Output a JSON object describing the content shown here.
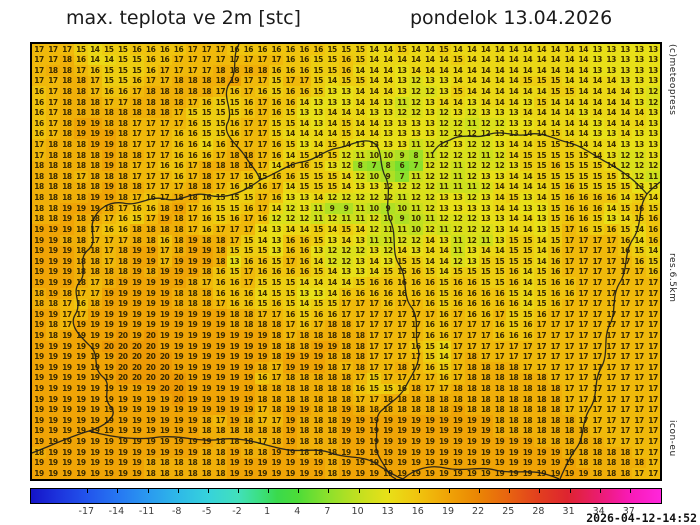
{
  "header": {
    "title_left": "max. teplota ve 2m [stc]",
    "title_right": "pondelok 13.04.2026"
  },
  "side_labels": {
    "top": "(c)meteopress",
    "middle": "res.6.5km",
    "bottom": "icon-eu"
  },
  "timestamp": "2026-04-12-14:52",
  "chart_data": {
    "type": "heatmap",
    "title": "max. teplota ve 2m [stc]",
    "valid_date": "pondelok 13.04.2026",
    "units": "degC",
    "grid_cols": 45,
    "grid_rows": 41,
    "rows": [
      "17 17 17 15 14 15 15 16 16 16 16 17 17 17 16 16 16 16 16 16 16 15 15 15 14 14 15 14 14 15 14 14 14 14 14 14 14 14 14 14 13 13 13 13 13",
      "17 17 18 16 14 14 15 15 16 16 17 17 17 17 17 17 17 17 16 16 15 15 16 15 14 14 14 14 14 14 15 14 14 14 14 14 14 14 14 14 13 13 13 13 13",
      "17 18 18 17 16 15 15 15 16 17 17 17 17 18 18 18 18 16 16 16 15 15 16 14 14 14 13 14 14 14 14 14 14 14 14 14 14 14 14 14 13 13 13 13 13",
      "17 17 18 18 17 15 15 16 17 17 18 18 18 18 19 17 17 15 17 17 15 14 15 15 14 14 13 12 13 13 14 14 14 14 14 15 15 15 14 14 14 14 13 13 13",
      "16 17 18 18 17 16 16 17 18 18 18 18 18 17 16 17 16 15 16 16 15 13 13 14 14 14 13 12 12 13 15 14 14 14 14 14 14 15 15 14 14 14 14 13 12",
      "16 17 18 18 18 17 17 18 18 18 18 17 16 15 15 16 17 16 16 14 13 13 13 14 14 13 11 12 13 14 14 13 14 14 14 13 15 14 14 14 14 14 14 13 12",
      "16 17 18 18 18 18 18 18 18 18 17 15 15 15 15 16 17 16 15 13 13 14 14 14 13 13 12 12 13 12 13 12 13 13 13 14 14 14 14 13 14 14 14 14 13",
      "16 17 18 19 19 18 18 17 17 17 17 16 15 15 16 17 17 15 15 14 13 14 15 14 14 13 13 13 13 12 12 11 12 12 13 13 14 14 14 14 13 14 14 14 13",
      "16 17 18 19 19 19 18 17 17 17 16 16 15 15 16 17 17 15 14 14 14 14 15 14 14 13 13 13 13 12 12 12 12 13 13 14 14 15 14 14 13 13 14 13 13",
      "17 18 18 18 19 19 18 17 17 17 16 16 14 16 17 17 17 16 15 13 14 15 14 13 13 13 13 11 12 12 13 12 12 13 14 14 15 15 15 14 14 14 13 13 13",
      "17 18 18 18 18 19 18 18 17 17 16 16 16 17 18 18 17 16 14 15 15 15 12 11 10 10 9 8 11 12 12 12 11 12 14 15 15 15 15 15 14 13 12 12 13",
      "18 18 18 18 18 19 18 17 17 16 16 17 18 18 18 18 17 14 16 16 15 13 12 8 7 8 6 7 12 12 11 12 12 12 13 15 15 16 15 15 15 14 12 12 12",
      "18 18 18 17 18 18 18 17 17 17 16 17 18 17 17 16 15 16 16 15 15 15 14 12 10 9 7 11 12 12 11 12 13 13 14 14 15 15 15 15 15 15 13 12 11",
      "18 18 18 18 18 19 18 18 17 17 17 18 18 17 16 15 16 17 14 15 15 15 14 13 13 12 12 12 12 11 11 11 12 14 14 14 14 15 16 15 15 15 15 13 13",
      "18 18 18 18 19 19 18 17 16 17 18 18 16 15 15 15 17 16 13 13 14 12 12 12 12 12 11 12 12 13 13 12 13 14 15 13 14 15 16 16 16 16 14 15 14",
      "18 18 19 19 19 18 17 16 16 18 19 17 16 15 15 16 17 14 12 13 11 9 9 11 10 9 10 11 12 13 13 13 13 14 14 13 13 15 16 16 16 14 15 16 15",
      "18 18 19 18 18 17 16 15 17 19 18 17 16 15 16 17 16 12 12 12 11 12 11 11 12 10 9 10 11 12 12 12 13 13 14 14 13 15 16 16 15 13 14 15 16",
      "19 19 19 18 17 16 16 18 18 18 18 17 16 17 17 17 14 13 14 14 15 14 15 14 12 11 11 10 12 11 12 12 12 13 14 14 13 15 17 16 15 16 15 14 16",
      "19 19 18 18 17 17 17 18 18 16 18 19 18 18 17 15 14 13 16 16 15 13 14 13 11 11 12 12 14 13 11 12 11 13 15 15 14 15 17 17 17 17 16 14 16",
      "19 19 19 18 18 17 18 19 19 17 18 19 19 18 15 15 15 13 16 16 13 12 12 12 13 12 14 13 14 14 11 13 14 14 15 15 14 16 17 17 17 17 16 15 14",
      "19 19 19 18 18 17 18 19 19 17 19 19 19 18 13 16 16 15 17 16 14 12 12 13 14 13 15 15 14 14 12 13 15 15 15 15 14 16 17 17 17 17 17 16 15",
      "19 19 19 18 18 18 18 19 18 19 19 19 18 16 15 17 16 16 16 16 15 14 13 13 14 15 15 16 15 14 15 15 15 15 16 14 15 16 17 17 17 17 17 17 16",
      "19 19 19 18 17 18 19 19 19 19 19 18 17 16 16 17 15 15 15 14 14 14 14 15 16 16 16 16 16 15 16 16 15 15 16 14 15 16 16 17 17 17 17 17 17",
      "18 19 18 17 17 19 19 19 19 19 18 18 18 16 16 16 14 15 15 13 13 14 16 16 16 16 16 16 16 15 16 16 16 16 15 14 15 16 16 17 17 17 17 17 17",
      "18 18 17 16 18 19 19 19 19 19 18 18 18 17 16 16 15 16 15 14 15 15 17 17 17 16 17 17 16 15 16 16 16 16 16 14 15 16 17 17 17 17 17 17 17",
      "19 19 17 17 19 19 19 19 19 19 19 19 19 19 18 18 17 17 16 15 16 16 17 17 17 17 17 17 17 16 17 16 16 17 15 15 16 17 17 17 17 17 17 17 17",
      "19 18 17 19 19 19 19 19 19 19 19 19 19 19 18 18 18 18 17 16 17 18 18 17 17 17 17 17 16 16 17 17 17 16 15 16 17 17 17 17 17 17 17 17 17",
      "19 18 19 19 19 19 20 19 20 19 19 19 19 19 19 19 19 18 17 18 18 18 18 18 17 17 17 17 16 16 17 17 17 16 16 16 17 17 17 17 17 17 17 17 17",
      "19 19 19 19 19 20 20 20 20 19 19 19 19 19 19 19 19 18 18 18 19 19 18 18 17 17 17 16 15 14 17 17 17 17 17 17 17 17 17 17 17 17 17 17 17",
      "19 19 19 19 19 19 20 20 20 20 19 19 19 19 19 19 19 18 19 19 19 18 18 18 17 17 17 17 15 14 17 18 17 17 17 17 17 17 17 17 17 17 17 17 17",
      "19 19 19 19 19 19 20 20 20 20 19 19 19 19 19 19 18 17 19 19 19 18 17 18 17 17 18 17 16 15 17 18 18 18 18 17 17 17 17 17 17 17 17 17 17",
      "19 19 19 19 19 19 20 20 20 20 20 19 19 19 19 19 16 17 18 18 18 18 18 17 15 17 17 17 17 16 17 18 18 18 18 18 18 17 17 17 17 17 17 17 17",
      "19 19 19 19 19 19 19 19 19 20 20 19 19 19 19 19 18 18 18 18 18 18 18 16 15 15 16 18 17 17 18 18 18 18 18 18 18 18 17 17 17 17 17 17 17",
      "19 19 19 19 19 19 19 19 19 19 20 19 19 19 19 19 18 18 18 18 18 18 18 17 17 18 18 18 18 18 18 18 18 18 18 18 18 18 17 17 17 17 17 17 17",
      "19 19 19 19 19 19 19 19 19 19 19 19 19 19 19 19 17 18 19 19 18 18 19 18 18 18 18 18 18 18 19 18 18 18 18 18 18 18 17 17 17 17 17 17 17",
      "19 19 19 19 19 19 19 19 19 19 19 19 18 17 19 18 17 17 19 18 18 18 19 19 19 19 19 19 19 19 19 19 19 18 18 18 18 18 18 17 17 17 17 17 17",
      "19 19 19 19 19 19 19 19 19 19 19 19 18 18 18 18 18 18 19 18 18 18 19 19 19 19 19 19 19 19 19 19 19 18 18 18 18 18 18 18 17 17 17 17 17",
      "19 19 19 19 19 19 19 19 19 19 19 19 19 18 18 18 17 18 19 18 18 18 19 19 19 19 19 19 19 19 19 19 19 19 19 19 18 18 18 18 18 17 17 17 17",
      "18 19 19 19 19 19 19 19 19 19 19 19 18 18 19 18 18 19 19 18 18 18 19 19 19 19 19 19 19 19 19 19 19 19 19 19 19 19 18 18 18 18 18 17 17",
      "19 19 19 19 19 19 19 19 18 18 18 18 18 18 19 19 19 19 19 19 19 18 19 19 19 19 19 19 19 19 19 19 19 19 19 19 19 19 19 18 18 18 18 18 17",
      "19 19 19 19 19 19 19 19 18 18 18 18 18 18 19 19 19 19 19 19 19 18 19 19 19 19 19 19 19 19 19 19 19 19 19 19 19 19 19 19 18 18 18 17 17"
    ],
    "colorbar": {
      "tick_labels": [
        "-17",
        "-14",
        "-11",
        "-8",
        "-5",
        "-2",
        "1",
        "4",
        "7",
        "10",
        "13",
        "16",
        "19",
        "22",
        "25",
        "28",
        "31",
        "34",
        "37"
      ],
      "tick_values": [
        -17,
        -14,
        -11,
        -8,
        -5,
        -2,
        1,
        4,
        7,
        10,
        13,
        16,
        19,
        22,
        25,
        28,
        31,
        34,
        37
      ],
      "t_min": -22.6,
      "t_max": 40.3,
      "stops": [
        {
          "t": -22.6,
          "c": "#1414c8"
        },
        {
          "t": -20,
          "c": "#1c32dc"
        },
        {
          "t": -17,
          "c": "#2254ec"
        },
        {
          "t": -14,
          "c": "#2676f2"
        },
        {
          "t": -11,
          "c": "#2a98f0"
        },
        {
          "t": -8,
          "c": "#2eb8e8"
        },
        {
          "t": -5,
          "c": "#36d2dc"
        },
        {
          "t": -2,
          "c": "#42e0bc"
        },
        {
          "t": 0,
          "c": "#3ce088"
        },
        {
          "t": 2,
          "c": "#3ada4c"
        },
        {
          "t": 4,
          "c": "#4cdc38"
        },
        {
          "t": 7,
          "c": "#8ce02c"
        },
        {
          "t": 10,
          "c": "#c0e020"
        },
        {
          "t": 13,
          "c": "#e8e018"
        },
        {
          "t": 16,
          "c": "#f0c40e"
        },
        {
          "t": 19,
          "c": "#f0a406"
        },
        {
          "t": 22,
          "c": "#ea8604"
        },
        {
          "t": 25,
          "c": "#e86410"
        },
        {
          "t": 28,
          "c": "#e2401e"
        },
        {
          "t": 31,
          "c": "#de2430"
        },
        {
          "t": 34,
          "c": "#ea1c6e"
        },
        {
          "t": 37,
          "c": "#f81ab4"
        },
        {
          "t": 40.3,
          "c": "#ff26dc"
        }
      ]
    }
  }
}
